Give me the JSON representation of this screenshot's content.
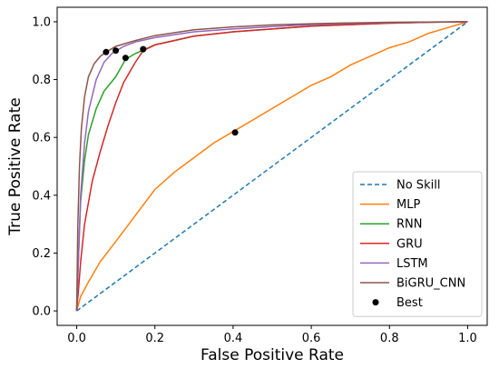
{
  "chart_data": {
    "type": "line",
    "xlabel": "False Positive Rate",
    "ylabel": "True Positive Rate",
    "xlim": [
      -0.05,
      1.05
    ],
    "ylim": [
      -0.05,
      1.05
    ],
    "xticks": [
      "0.0",
      "0.2",
      "0.4",
      "0.6",
      "0.8",
      "1.0"
    ],
    "yticks": [
      "0.0",
      "0.2",
      "0.4",
      "0.6",
      "0.8",
      "1.0"
    ],
    "grid": false,
    "legend_position": "lower-right",
    "series": [
      {
        "name": "No Skill",
        "color": "#1f77b4",
        "style": "dashed",
        "points": [
          [
            0,
            0
          ],
          [
            1,
            1
          ]
        ]
      },
      {
        "name": "MLP",
        "color": "#ff7f0e",
        "style": "solid",
        "points": [
          [
            0,
            0
          ],
          [
            0.01,
            0.05
          ],
          [
            0.03,
            0.1
          ],
          [
            0.06,
            0.17
          ],
          [
            0.1,
            0.24
          ],
          [
            0.15,
            0.33
          ],
          [
            0.2,
            0.42
          ],
          [
            0.25,
            0.48
          ],
          [
            0.3,
            0.53
          ],
          [
            0.35,
            0.58
          ],
          [
            0.4,
            0.62
          ],
          [
            0.45,
            0.66
          ],
          [
            0.5,
            0.7
          ],
          [
            0.55,
            0.74
          ],
          [
            0.6,
            0.78
          ],
          [
            0.65,
            0.81
          ],
          [
            0.7,
            0.85
          ],
          [
            0.75,
            0.88
          ],
          [
            0.8,
            0.91
          ],
          [
            0.85,
            0.93
          ],
          [
            0.9,
            0.96
          ],
          [
            0.95,
            0.98
          ],
          [
            1,
            1
          ]
        ]
      },
      {
        "name": "RNN",
        "color": "#2ca02c",
        "style": "solid",
        "points": [
          [
            0,
            0
          ],
          [
            0.005,
            0.2
          ],
          [
            0.01,
            0.38
          ],
          [
            0.02,
            0.52
          ],
          [
            0.03,
            0.61
          ],
          [
            0.05,
            0.7
          ],
          [
            0.07,
            0.76
          ],
          [
            0.1,
            0.81
          ],
          [
            0.125,
            0.87
          ],
          [
            0.15,
            0.89
          ],
          [
            0.2,
            0.92
          ],
          [
            0.3,
            0.95
          ],
          [
            0.4,
            0.965
          ],
          [
            0.5,
            0.975
          ],
          [
            0.6,
            0.985
          ],
          [
            0.7,
            0.99
          ],
          [
            0.8,
            0.995
          ],
          [
            0.9,
            0.998
          ],
          [
            1,
            1
          ]
        ]
      },
      {
        "name": "GRU",
        "color": "#d62728",
        "style": "solid",
        "points": [
          [
            0,
            0
          ],
          [
            0.005,
            0.08
          ],
          [
            0.01,
            0.17
          ],
          [
            0.02,
            0.3
          ],
          [
            0.04,
            0.45
          ],
          [
            0.06,
            0.55
          ],
          [
            0.08,
            0.64
          ],
          [
            0.1,
            0.72
          ],
          [
            0.12,
            0.79
          ],
          [
            0.15,
            0.86
          ],
          [
            0.17,
            0.9
          ],
          [
            0.2,
            0.92
          ],
          [
            0.3,
            0.95
          ],
          [
            0.4,
            0.965
          ],
          [
            0.5,
            0.975
          ],
          [
            0.6,
            0.985
          ],
          [
            0.7,
            0.99
          ],
          [
            0.8,
            0.995
          ],
          [
            0.9,
            0.998
          ],
          [
            1,
            1
          ]
        ]
      },
      {
        "name": "LSTM",
        "color": "#9467bd",
        "style": "solid",
        "points": [
          [
            0,
            0
          ],
          [
            0.005,
            0.2
          ],
          [
            0.01,
            0.4
          ],
          [
            0.02,
            0.58
          ],
          [
            0.03,
            0.69
          ],
          [
            0.05,
            0.8
          ],
          [
            0.07,
            0.86
          ],
          [
            0.09,
            0.89
          ],
          [
            0.12,
            0.915
          ],
          [
            0.15,
            0.93
          ],
          [
            0.2,
            0.945
          ],
          [
            0.3,
            0.965
          ],
          [
            0.4,
            0.975
          ],
          [
            0.5,
            0.983
          ],
          [
            0.6,
            0.99
          ],
          [
            0.7,
            0.994
          ],
          [
            0.8,
            0.997
          ],
          [
            0.9,
            0.999
          ],
          [
            1,
            1
          ]
        ]
      },
      {
        "name": "BiGRU_CNN",
        "color": "#8c564b",
        "style": "solid",
        "points": [
          [
            0,
            0
          ],
          [
            0.003,
            0.3
          ],
          [
            0.007,
            0.5
          ],
          [
            0.012,
            0.63
          ],
          [
            0.02,
            0.74
          ],
          [
            0.03,
            0.81
          ],
          [
            0.045,
            0.855
          ],
          [
            0.06,
            0.88
          ],
          [
            0.075,
            0.895
          ],
          [
            0.1,
            0.915
          ],
          [
            0.15,
            0.935
          ],
          [
            0.2,
            0.952
          ],
          [
            0.3,
            0.972
          ],
          [
            0.4,
            0.982
          ],
          [
            0.5,
            0.989
          ],
          [
            0.6,
            0.993
          ],
          [
            0.7,
            0.996
          ],
          [
            0.8,
            0.998
          ],
          [
            0.9,
            0.999
          ],
          [
            1,
            1
          ]
        ]
      }
    ],
    "best": {
      "name": "Best",
      "color": "#000000",
      "points": [
        [
          0.075,
          0.895
        ],
        [
          0.1,
          0.9
        ],
        [
          0.125,
          0.875
        ],
        [
          0.17,
          0.905
        ],
        [
          0.405,
          0.617
        ]
      ]
    }
  }
}
